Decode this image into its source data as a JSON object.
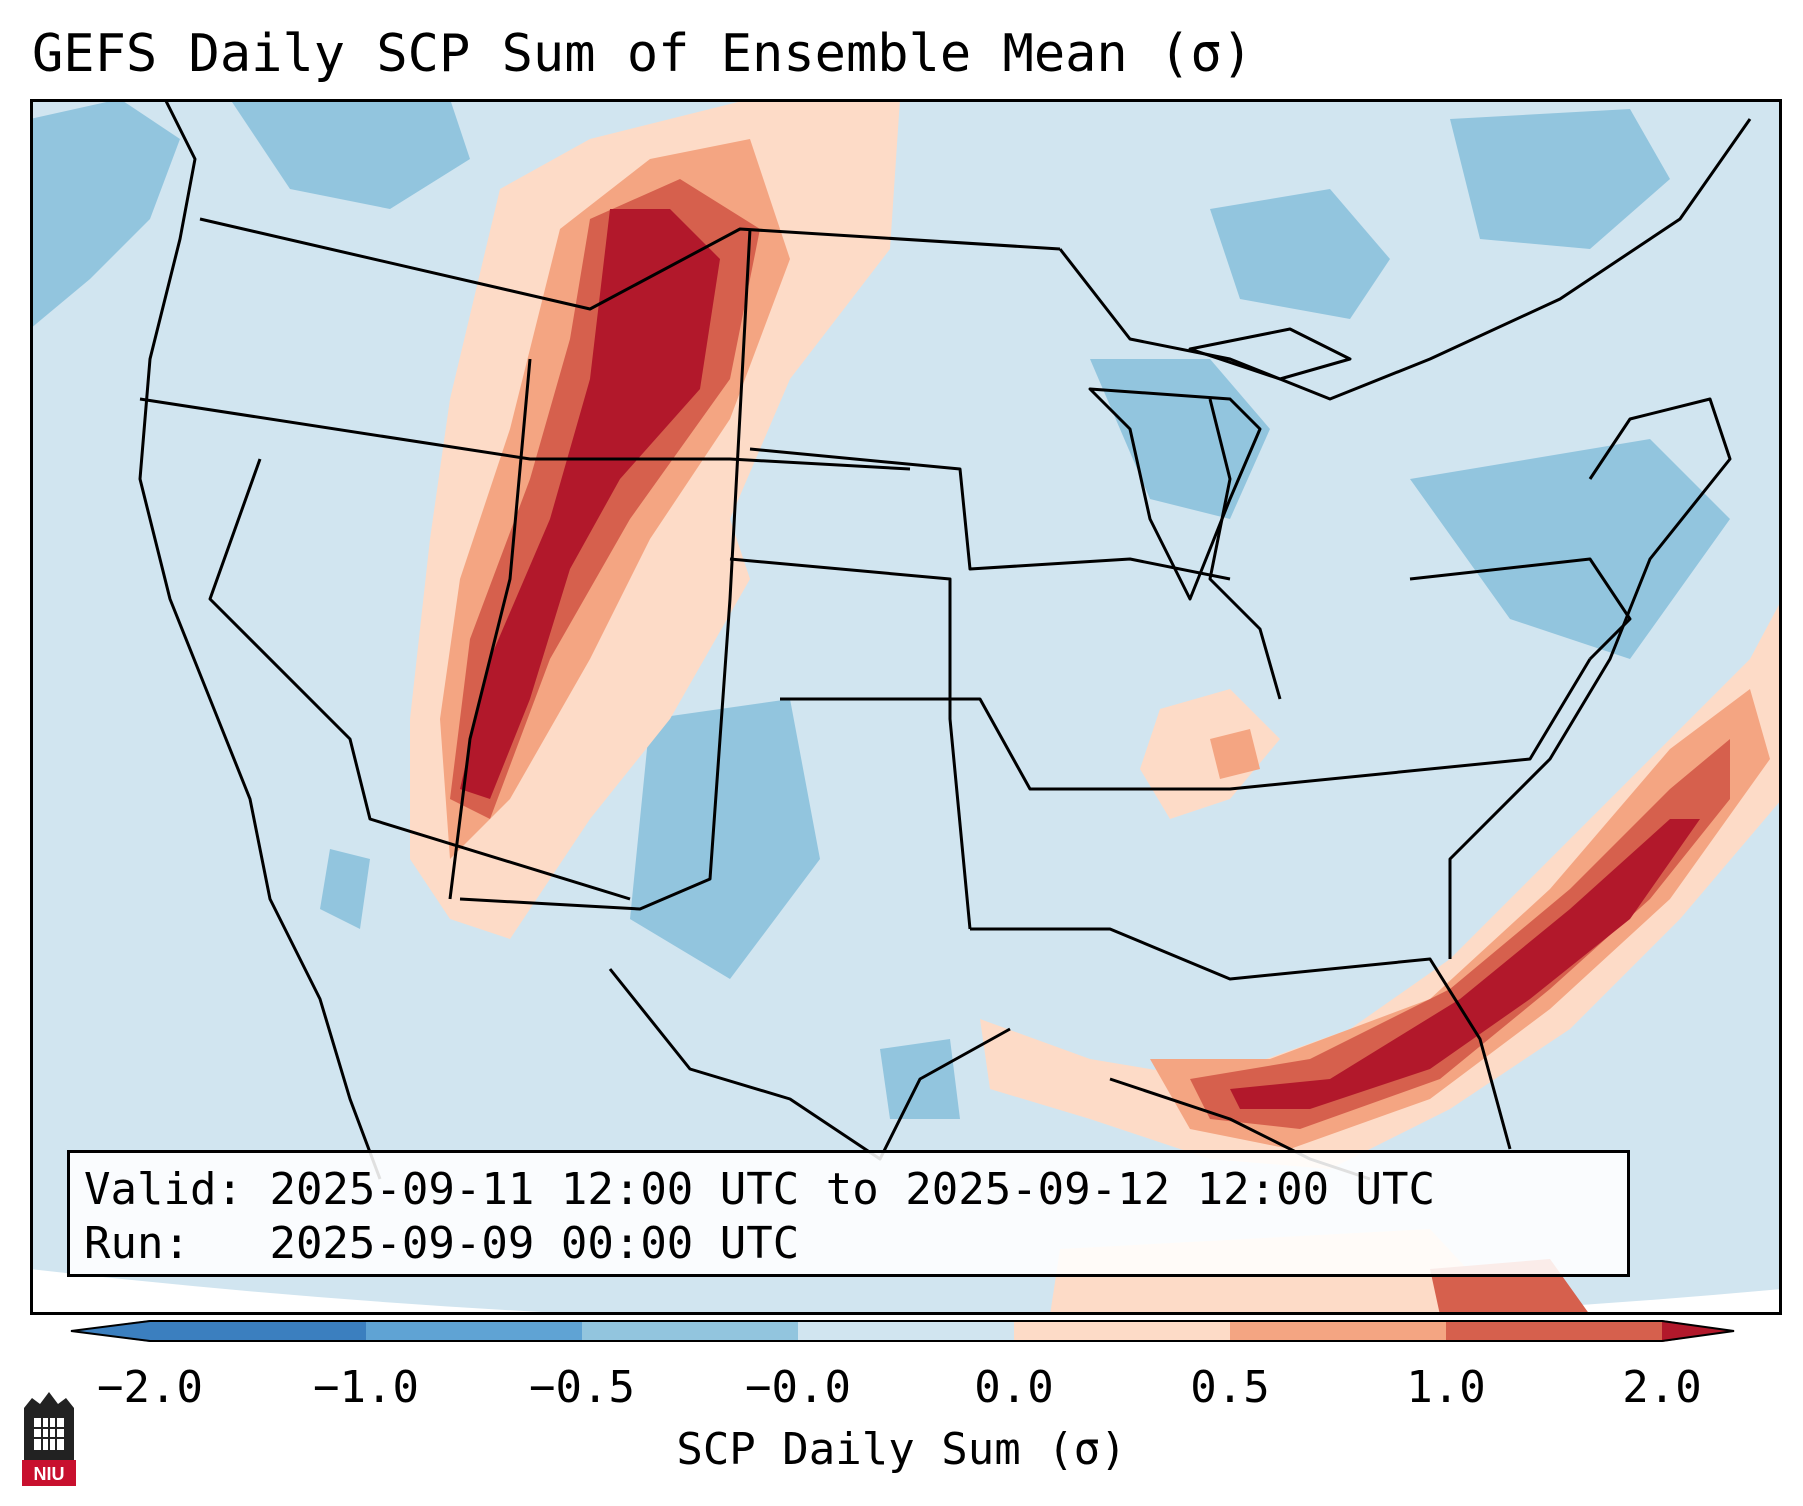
{
  "title": "GEFS Daily SCP Sum of Ensemble Mean (σ)",
  "info": {
    "valid_label": "Valid:",
    "valid_text": "2025-09-11 12:00 UTC to 2025-09-12 12:00 UTC",
    "run_label": "Run:",
    "run_text": "2025-09-09 00:00 UTC"
  },
  "colorbar": {
    "label": "SCP Daily Sum (σ)",
    "ticks": [
      "−2.0",
      "−1.0",
      "−0.5",
      "−0.0",
      "0.0",
      "0.5",
      "1.0",
      "2.0"
    ],
    "colors": [
      "#3b7fbf",
      "#5fa3d4",
      "#92c5de",
      "#d1e5f0",
      "#fddbc7",
      "#f4a582",
      "#d6604d",
      "#b2182b"
    ],
    "extend": "both"
  },
  "logo": {
    "name": "NIU"
  }
}
